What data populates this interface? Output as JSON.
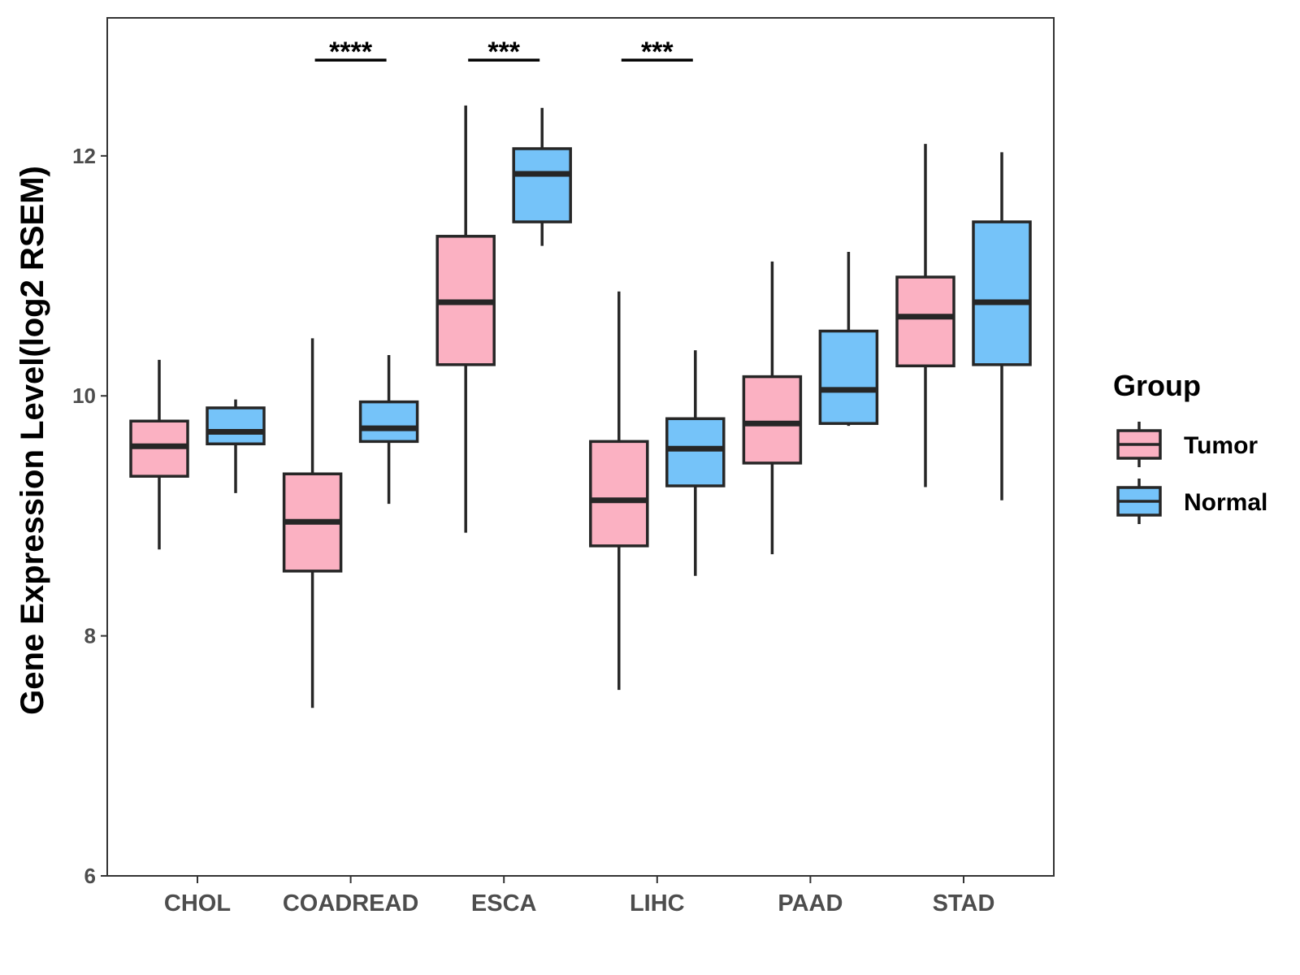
{
  "chart_data": {
    "type": "boxplot",
    "ylabel": "Gene Expression Level(log2 RSEM)",
    "xlabel": "",
    "ylim": [
      6,
      13.15
    ],
    "yticks": [
      6,
      8,
      10,
      12
    ],
    "grid": false,
    "legend_position": "right",
    "legend": {
      "title": "Group",
      "items": [
        {
          "name": "Tumor",
          "color": "#FBB1C2"
        },
        {
          "name": "Normal",
          "color": "#75C3F9"
        }
      ]
    },
    "categories": [
      "CHOL",
      "COADREAD",
      "ESCA",
      "LIHC",
      "PAAD",
      "STAD"
    ],
    "series": [
      {
        "name": "Tumor",
        "color": "#FBB1C2",
        "boxes": [
          {
            "min": 8.72,
            "q1": 9.33,
            "median": 9.58,
            "q3": 9.79,
            "max": 10.3
          },
          {
            "min": 7.4,
            "q1": 8.54,
            "median": 8.95,
            "q3": 9.35,
            "max": 10.48
          },
          {
            "min": 8.86,
            "q1": 10.26,
            "median": 10.78,
            "q3": 11.33,
            "max": 12.42
          },
          {
            "min": 7.55,
            "q1": 8.75,
            "median": 9.13,
            "q3": 9.62,
            "max": 10.87
          },
          {
            "min": 8.68,
            "q1": 9.44,
            "median": 9.77,
            "q3": 10.16,
            "max": 11.12
          },
          {
            "min": 9.24,
            "q1": 10.25,
            "median": 10.66,
            "q3": 10.99,
            "max": 12.1
          }
        ]
      },
      {
        "name": "Normal",
        "color": "#75C3F9",
        "boxes": [
          {
            "min": 9.19,
            "q1": 9.6,
            "median": 9.7,
            "q3": 9.9,
            "max": 9.97
          },
          {
            "min": 9.1,
            "q1": 9.62,
            "median": 9.73,
            "q3": 9.95,
            "max": 10.34
          },
          {
            "min": 11.25,
            "q1": 11.45,
            "median": 11.85,
            "q3": 12.06,
            "max": 12.4
          },
          {
            "min": 8.5,
            "q1": 9.25,
            "median": 9.56,
            "q3": 9.81,
            "max": 10.38
          },
          {
            "min": 9.75,
            "q1": 9.77,
            "median": 10.05,
            "q3": 10.54,
            "max": 11.2
          },
          {
            "min": 9.13,
            "q1": 10.26,
            "median": 10.78,
            "q3": 11.45,
            "max": 12.03
          }
        ]
      }
    ],
    "significance": [
      {
        "category": "CHOL",
        "label": ""
      },
      {
        "category": "COADREAD",
        "label": "****"
      },
      {
        "category": "ESCA",
        "label": "***"
      },
      {
        "category": "LIHC",
        "label": "***"
      },
      {
        "category": "PAAD",
        "label": ""
      },
      {
        "category": "STAD",
        "label": ""
      }
    ],
    "colors": {
      "box_outline": "#262626",
      "axis": "#333333",
      "tick_label": "#4d4d4d"
    }
  }
}
